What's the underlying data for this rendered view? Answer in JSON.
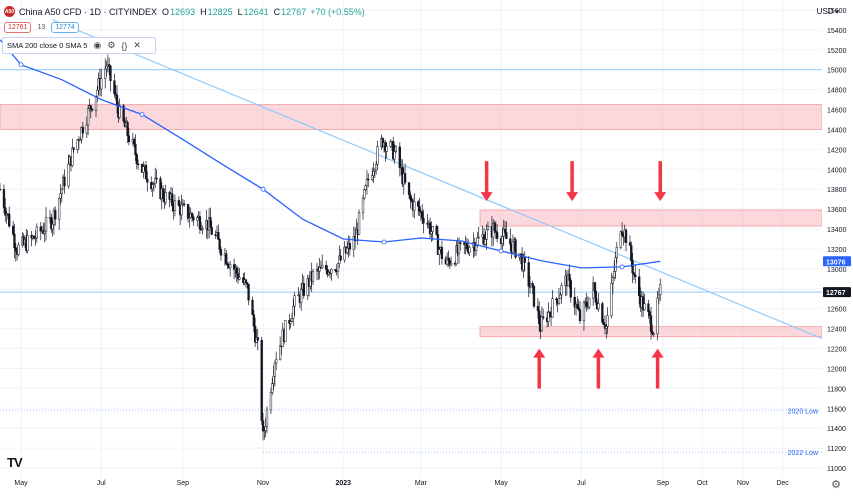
{
  "header": {
    "symbol_icon": "A50",
    "title": "China A50 CFD · 1D · CITYINDEX",
    "open_label": "O",
    "open": "12693",
    "high_label": "H",
    "high": "12825",
    "low_label": "L",
    "low": "12641",
    "close_label": "C",
    "close": "12767",
    "change": "+70 (+0.55%)"
  },
  "trade": {
    "sell": "12761",
    "spread": "13",
    "buy": "12774"
  },
  "indicator": {
    "label": "SMA 200 close 0 SMA 5",
    "icons": [
      "eye-icon",
      "settings-icon",
      "braces-icon",
      "close-icon"
    ]
  },
  "currency": "USD",
  "colors": {
    "up": "#26a69a",
    "candle": "#131722",
    "sma": "#2962ff",
    "zone": "#f7a8b0",
    "arrow": "#f23645",
    "trendline": "#90caf9",
    "grid": "#f0f3fa"
  },
  "chart_data": {
    "type": "candlestick",
    "title": "China A50 CFD · 1D · CITYINDEX",
    "ylim": [
      10900,
      15700
    ],
    "y_ticks": [
      11000,
      11200,
      11400,
      11600,
      11800,
      12000,
      12200,
      12400,
      12600,
      12800,
      13000,
      13200,
      13400,
      13600,
      13800,
      14000,
      14200,
      14400,
      14600,
      14800,
      15000,
      15200,
      15400,
      15600
    ],
    "x_ticks": [
      "May",
      "Jul",
      "Sep",
      "Nov",
      "2023",
      "Mar",
      "May",
      "Jul",
      "Sep",
      "Oct",
      "Nov",
      "Dec"
    ],
    "x_range": [
      "2022-04-15",
      "2023-12-31"
    ],
    "last_price": 12767,
    "sma_last": 13076,
    "price_path": [
      [
        "2022-04-15",
        13800
      ],
      [
        "2022-04-28",
        13200
      ],
      [
        "2022-05-10",
        13300
      ],
      [
        "2022-05-25",
        13500
      ],
      [
        "2022-06-10",
        14200
      ],
      [
        "2022-06-25",
        14700
      ],
      [
        "2022-07-05",
        15050
      ],
      [
        "2022-07-15",
        14550
      ],
      [
        "2022-08-01",
        14000
      ],
      [
        "2022-08-20",
        13700
      ],
      [
        "2022-09-05",
        13550
      ],
      [
        "2022-09-20",
        13450
      ],
      [
        "2022-10-05",
        13100
      ],
      [
        "2022-10-20",
        12800
      ],
      [
        "2022-10-28",
        12200
      ],
      [
        "2022-11-01",
        11300
      ],
      [
        "2022-11-10",
        12100
      ],
      [
        "2022-11-25",
        12650
      ],
      [
        "2022-12-10",
        12950
      ],
      [
        "2022-12-28",
        13050
      ],
      [
        "2023-01-10",
        13300
      ],
      [
        "2023-01-20",
        13900
      ],
      [
        "2023-01-31",
        14300
      ],
      [
        "2023-02-10",
        14150
      ],
      [
        "2023-02-20",
        13700
      ],
      [
        "2023-03-05",
        13500
      ],
      [
        "2023-03-20",
        13050
      ],
      [
        "2023-04-01",
        13200
      ],
      [
        "2023-04-15",
        13300
      ],
      [
        "2023-04-25",
        13400
      ],
      [
        "2023-05-05",
        13300
      ],
      [
        "2023-05-15",
        13150
      ],
      [
        "2023-05-25",
        12750
      ],
      [
        "2023-05-31",
        12420
      ],
      [
        "2023-06-10",
        12650
      ],
      [
        "2023-06-20",
        12900
      ],
      [
        "2023-06-30",
        12500
      ],
      [
        "2023-07-10",
        12800
      ],
      [
        "2023-07-20",
        12420
      ],
      [
        "2023-07-31",
        13450
      ],
      [
        "2023-08-05",
        13300
      ],
      [
        "2023-08-12",
        12800
      ],
      [
        "2023-08-18",
        12600
      ],
      [
        "2023-08-25",
        12400
      ],
      [
        "2023-08-30",
        12767
      ]
    ],
    "sma_200": [
      [
        "2022-04-15",
        15300
      ],
      [
        "2022-05-01",
        15050
      ],
      [
        "2022-06-01",
        14900
      ],
      [
        "2022-07-01",
        14700
      ],
      [
        "2022-08-01",
        14550
      ],
      [
        "2022-09-01",
        14300
      ],
      [
        "2022-10-01",
        14050
      ],
      [
        "2022-11-01",
        13800
      ],
      [
        "2022-12-01",
        13500
      ],
      [
        "2023-01-01",
        13300
      ],
      [
        "2023-02-01",
        13270
      ],
      [
        "2023-03-01",
        13310
      ],
      [
        "2023-04-01",
        13280
      ],
      [
        "2023-05-01",
        13180
      ],
      [
        "2023-06-01",
        13080
      ],
      [
        "2023-07-01",
        13010
      ],
      [
        "2023-08-01",
        13020
      ],
      [
        "2023-08-30",
        13076
      ]
    ],
    "horizontal_lines": [
      {
        "price": 15000,
        "color": "#90caf9"
      },
      {
        "price": 12767,
        "color": "#90caf9"
      }
    ],
    "dotted_levels": [
      {
        "price": 11580,
        "label": "2020 Low",
        "from": "2022-04-15"
      },
      {
        "price": 11160,
        "label": "2022 Low",
        "from": "2022-11-01"
      }
    ],
    "zones": [
      {
        "y1": 14400,
        "y2": 14650,
        "from": "2022-04-15",
        "to": "2023-12-31"
      },
      {
        "y1": 13430,
        "y2": 13590,
        "from": "2023-04-15",
        "to": "2023-12-31"
      },
      {
        "y1": 12320,
        "y2": 12420,
        "from": "2023-04-15",
        "to": "2023-12-31"
      }
    ],
    "trendline": {
      "from": [
        "2022-05-25",
        15500
      ],
      "to": [
        "2023-12-31",
        12300
      ]
    },
    "down_arrows": [
      "2023-04-20",
      "2023-06-24",
      "2023-08-30"
    ],
    "up_arrows": [
      "2023-05-30",
      "2023-07-14",
      "2023-08-28"
    ],
    "level_labels": [
      "2020 Low",
      "2022 Low"
    ]
  }
}
